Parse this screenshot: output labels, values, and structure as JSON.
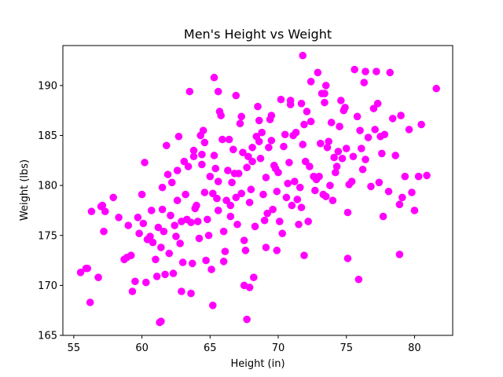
{
  "chart_data": {
    "type": "scatter",
    "title": "Men's Height vs Weight",
    "xlabel": "Height (in)",
    "ylabel": "Weight (lbs)",
    "xlim": [
      54.2,
      82.8
    ],
    "ylim": [
      165,
      194
    ],
    "xticks": [
      55,
      60,
      65,
      70,
      75,
      80
    ],
    "yticks": [
      165,
      170,
      175,
      180,
      185,
      190
    ],
    "grid": false,
    "marker_color": "#ff00ff",
    "x": [
      55.5,
      55.9,
      56.2,
      56.3,
      56.8,
      57.0,
      57.2,
      57.3,
      58.7,
      59.0,
      59.2,
      59.3,
      59.5,
      59.7,
      59.8,
      60.0,
      60.1,
      60.3,
      60.6,
      60.7,
      61.0,
      61.1,
      61.3,
      61.4,
      61.5,
      61.6,
      61.7,
      61.9,
      62.1,
      62.2,
      62.3,
      62.5,
      62.6,
      62.7,
      62.9,
      63.0,
      63.2,
      63.4,
      63.6,
      63.8,
      64.0,
      64.2,
      64.4,
      64.6,
      64.8,
      65.0,
      65.1,
      65.3,
      65.6,
      65.9,
      64.5,
      65.2,
      66.0,
      66.3,
      66.5,
      66.7,
      66.9,
      67.2,
      67.5,
      67.8,
      68.0,
      68.3,
      68.6,
      68.9,
      69.2,
      69.5,
      69.8,
      70.1,
      70.4,
      70.7,
      71.0,
      71.3,
      71.7,
      72.0,
      72.4,
      72.8,
      73.1,
      73.5,
      73.9,
      74.2,
      74.6,
      75.0,
      75.4,
      75.8,
      76.2,
      76.6,
      77.0,
      77.4,
      77.8,
      78.2,
      78.6,
      79.0,
      79.3,
      79.6,
      80.0,
      80.5,
      80.9,
      81.6,
      64.9,
      65.7,
      66.1,
      66.6,
      67.0,
      67.4,
      67.9,
      68.2,
      68.7,
      69.1,
      69.4,
      69.9,
      70.3,
      70.9,
      71.4,
      71.8,
      72.3,
      72.7,
      73.2,
      73.6,
      74.0,
      74.5,
      62.4,
      63.1,
      63.7,
      64.3,
      65.5,
      66.8,
      67.6,
      68.5,
      69.7,
      70.6,
      71.5,
      72.6,
      73.4,
      74.4,
      75.2,
      76.0,
      76.8,
      77.6,
      78.4,
      79.1,
      61.2,
      62.8,
      63.9,
      65.4,
      66.4,
      67.3,
      68.1,
      69.0,
      70.0,
      71.1,
      72.1,
      73.0,
      74.1,
      75.1,
      76.1,
      77.1,
      78.1,
      60.4,
      58.3,
      57.9,
      64.1,
      65.8,
      67.1,
      68.4,
      69.6,
      70.8,
      71.9,
      73.3,
      74.8,
      76.4,
      77.7,
      62.0,
      63.3,
      64.7,
      66.2,
      67.7,
      69.3,
      70.5,
      72.2,
      73.8,
      75.5,
      77.3,
      64.4,
      66.9,
      68.8,
      71.2,
      73.7,
      76.3,
      61.8,
      63.5,
      65.3,
      67.3,
      69.1,
      71.6,
      74.3,
      78.9,
      70.2,
      68.1,
      66.0,
      72.9,
      67.5,
      69.9,
      65.2,
      71.9,
      74.7,
      63.8,
      60.8,
      79.8,
      75.9,
      62.9,
      58.9,
      61.5,
      65.6,
      67.7,
      69.5,
      71.7,
      73.4,
      75.6,
      77.2,
      80.3
    ],
    "y": [
      171.3,
      171.7,
      168.3,
      177.4,
      170.8,
      177.9,
      175.4,
      177.4,
      172.6,
      176.0,
      173.0,
      169.4,
      170.4,
      176.8,
      175.2,
      179.1,
      176.2,
      170.3,
      174.9,
      177.5,
      172.6,
      170.9,
      166.3,
      173.8,
      179.8,
      175.4,
      171.1,
      181.1,
      177.0,
      180.3,
      171.2,
      174.9,
      178.5,
      184.9,
      176.4,
      172.3,
      179.1,
      181.9,
      176.3,
      183.5,
      178.0,
      174.7,
      182.1,
      179.3,
      176.6,
      180.9,
      171.6,
      183.0,
      177.5,
      184.6,
      185.5,
      179.2,
      172.4,
      181.5,
      176.9,
      183.6,
      178.8,
      186.2,
      174.5,
      182.9,
      179.6,
      175.9,
      184.4,
      179.1,
      177.2,
      187.0,
      181.7,
      176.4,
      183.9,
      180.2,
      178.0,
      185.3,
      177.8,
      182.4,
      186.4,
      180.6,
      184.2,
      178.9,
      186.3,
      181.3,
      188.5,
      183.7,
      180.4,
      186.9,
      181.6,
      184.8,
      187.7,
      180.3,
      185.1,
      191.3,
      183.0,
      187.0,
      180.9,
      185.6,
      177.5,
      186.1,
      181.0,
      189.7,
      175.0,
      187.4,
      173.4,
      180.3,
      176.1,
      183.3,
      178.3,
      170.8,
      182.7,
      173.8,
      186.6,
      179.4,
      175.2,
      188.1,
      178.6,
      184.1,
      181.9,
      179.5,
      189.2,
      183.8,
      178.5,
      185.9,
      176.0,
      182.4,
      172.2,
      185.0,
      178.7,
      181.2,
      173.5,
      187.9,
      182.0,
      178.8,
      176.1,
      180.9,
      188.3,
      183.4,
      180.1,
      185.5,
      179.9,
      183.2,
      186.7,
      178.8,
      175.8,
      174.2,
      177.7,
      181.7,
      184.6,
      179.2,
      183.8,
      176.5,
      181.3,
      185.0,
      187.4,
      180.9,
      182.8,
      177.3,
      183.7,
      185.6,
      179.4,
      174.6,
      176.8,
      178.8,
      176.4,
      187.0,
      181.2,
      184.9,
      177.6,
      182.3,
      186.1,
      179.1,
      187.5,
      182.6,
      176.9,
      173.2,
      176.6,
      172.5,
      178.5,
      181.8,
      183.8,
      185.1,
      176.4,
      180.0,
      182.9,
      188.2,
      183.1,
      189.0,
      185.3,
      180.4,
      184.4,
      190.3,
      184.0,
      189.4,
      190.8,
      186.9,
      180.8,
      179.8,
      181.9,
      178.1,
      188.6,
      182.4,
      175.4,
      191.3,
      170.0,
      173.5,
      168.0,
      173.0,
      182.7,
      182.9,
      174.3,
      179.3,
      170.6,
      169.4,
      172.8,
      177.6,
      180.4,
      166.6,
      184.5,
      188.2,
      189.2,
      191.6,
      191.4,
      180.9
    ],
    "x_extra": [
      71.8,
      61.4,
      65.6,
      75.1,
      73.5,
      76.4,
      78.9,
      67.9,
      62.6,
      64.6,
      66.5,
      68.6,
      70.9,
      72.4,
      74.9,
      77.5,
      56.0,
      57.1,
      60.2,
      63.6
    ],
    "y_extra": [
      193.0,
      166.4,
      189.4,
      172.7,
      190.0,
      191.4,
      173.1,
      169.8,
      181.5,
      184.3,
      178.0,
      186.5,
      188.5,
      190.4,
      187.8,
      184.9,
      171.7,
      178.0,
      182.3,
      169.2
    ]
  }
}
